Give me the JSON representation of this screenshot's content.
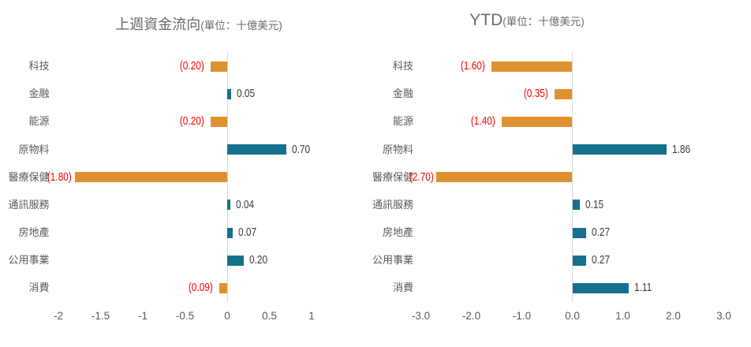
{
  "page": {
    "background_color": "#ffffff"
  },
  "colors": {
    "positive_bar": "#15708e",
    "negative_bar": "#e0912f",
    "positive_label": "#3c3c3c",
    "negative_label": "#ff0000",
    "axis_line": "#d9d9d9",
    "category_label": "#595959",
    "tick_label": "#595959",
    "title": "#6a6a6a"
  },
  "chart_data": [
    {
      "type": "bar",
      "orientation": "horizontal",
      "title": "上週資金流向",
      "title_note": "(單位：十億美元)",
      "categories": [
        "科技",
        "金融",
        "能源",
        "原物料",
        "醫療保健",
        "通訊服務",
        "房地產",
        "公用事業",
        "消費"
      ],
      "values": [
        -0.2,
        0.05,
        -0.2,
        0.7,
        -1.8,
        0.04,
        0.07,
        0.2,
        -0.09
      ],
      "data_labels": [
        "(0.20)",
        "0.05",
        "(0.20)",
        "0.70",
        "(1.80)",
        "0.04",
        "0.07",
        "0.20",
        "(0.09)"
      ],
      "xlim": [
        -2,
        1
      ],
      "x_tick_values": [
        -2,
        -1.5,
        -1,
        -0.5,
        0,
        0.5,
        1
      ],
      "x_tick_labels": [
        "-2",
        "-1.5",
        "-1",
        "-0.5",
        "0",
        "0.5",
        "1"
      ],
      "legend": "none",
      "grid": "zero-axis-only"
    },
    {
      "type": "bar",
      "orientation": "horizontal",
      "title": "YTD",
      "title_note": "(單位：十億美元)",
      "categories": [
        "科技",
        "金融",
        "能源",
        "原物料",
        "醫療保健",
        "通訊服務",
        "房地產",
        "公用事業",
        "消費"
      ],
      "values": [
        -1.6,
        -0.35,
        -1.4,
        1.86,
        -2.7,
        0.15,
        0.27,
        0.27,
        1.11
      ],
      "data_labels": [
        "(1.60)",
        "(0.35)",
        "(1.40)",
        "1.86",
        "(2.70)",
        "0.15",
        "0.27",
        "0.27",
        "1.11"
      ],
      "xlim": [
        -3,
        3
      ],
      "x_tick_values": [
        -3,
        -2,
        -1,
        0,
        1,
        2,
        3
      ],
      "x_tick_labels": [
        "-3.0",
        "-2.0",
        "-1.0",
        "0.0",
        "1.0",
        "2.0",
        "3.0"
      ],
      "legend": "none",
      "grid": "zero-axis-only"
    }
  ]
}
